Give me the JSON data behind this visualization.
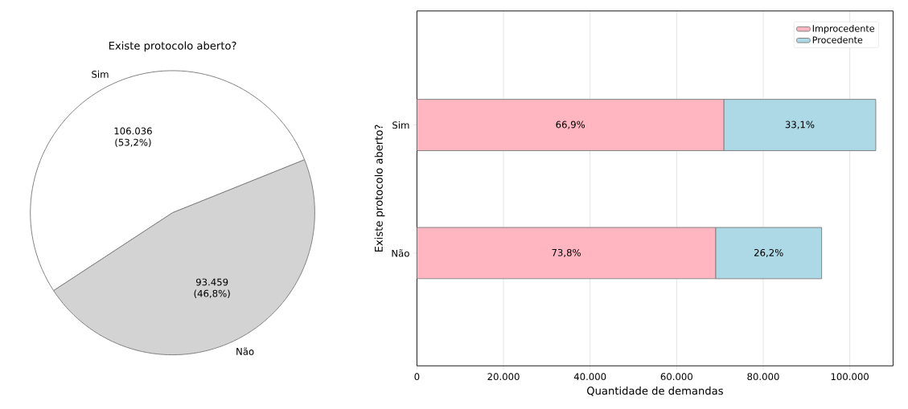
{
  "chart_data": [
    {
      "type": "pie",
      "title": "Existe protocolo aberto?",
      "categories": [
        "Sim",
        "Não"
      ],
      "values": [
        106036,
        93459
      ],
      "colors": [
        "#ffffff",
        "#d3d3d3"
      ],
      "value_labels": [
        "106.036 (53,2%)",
        "93.459 (46,8%)"
      ]
    },
    {
      "type": "bar",
      "orientation": "horizontal",
      "stacked": true,
      "categories": [
        "Sim",
        "Não"
      ],
      "xlabel": "Quantidade de demandas",
      "ylabel": "Existe protocolo aberto?",
      "xlim": [
        0,
        110000
      ],
      "xticks": [
        0,
        {
          "value": 20000,
          "label": "20.000"
        },
        {
          "value": 40000,
          "label": "40.000"
        },
        {
          "value": 60000,
          "label": "60.000"
        },
        {
          "value": 80000,
          "label": "80.000"
        },
        {
          "value": 100000,
          "label": "100.000"
        }
      ],
      "grid": "x",
      "legend": "top right",
      "series": [
        {
          "name": "Improcedente",
          "color": "#ffb6c1",
          "values": [
            70900,
            69000
          ]
        },
        {
          "name": "Procedente",
          "color": "#add8e6",
          "values": [
            35100,
            24500
          ]
        }
      ],
      "annotations": [
        "66,9%",
        "73,8%",
        "33,1%",
        "26,2%"
      ]
    }
  ]
}
